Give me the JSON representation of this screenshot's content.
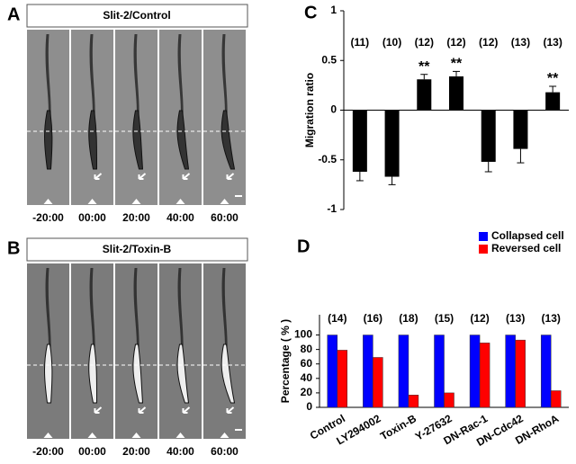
{
  "panels": [
    {
      "label": "A",
      "title": "Slit-2/Control",
      "times": [
        "-20:00",
        "00:00",
        "20:00",
        "40:00",
        "60:00"
      ]
    },
    {
      "label": "B",
      "title": "Slit-2/Toxin-B",
      "times": [
        "-20:00",
        "00:00",
        "20:00",
        "40:00",
        "60:00"
      ]
    }
  ],
  "chart_data": [
    {
      "type": "bar",
      "panel_label": "C",
      "ylabel": "Migration ratio",
      "categories": [
        null,
        null,
        null,
        null,
        null,
        null,
        null
      ],
      "values": [
        -0.62,
        -0.67,
        0.31,
        0.34,
        -0.52,
        -0.39,
        0.18
      ],
      "errors": [
        0.09,
        0.08,
        0.05,
        0.05,
        0.1,
        0.14,
        0.06
      ],
      "counts": [
        "(11)",
        "(10)",
        "(12)",
        "(12)",
        "(12)",
        "(13)",
        "(13)"
      ],
      "significance": [
        null,
        null,
        "**",
        "**",
        null,
        null,
        "**"
      ],
      "color": "#000000",
      "ylim": [
        -1,
        1
      ],
      "yticks": [
        -1,
        -0.5,
        0,
        0.5,
        1
      ]
    },
    {
      "type": "grouped-bar",
      "panel_label": "D",
      "ylabel": "Percentage ( % )",
      "categories": [
        "Control",
        "LY294002",
        "Toxin-B",
        "Y-27632",
        "DN-Rac-1",
        "DN-Cdc42",
        "DN-RhoA"
      ],
      "series": [
        {
          "name": "Collapsed cell",
          "color": "#0000ff",
          "values": [
            100,
            100,
            100,
            100,
            100,
            100,
            100
          ]
        },
        {
          "name": "Reversed cell",
          "color": "#ff0000",
          "values": [
            79,
            69,
            17,
            20,
            89,
            93,
            23
          ]
        }
      ],
      "counts": [
        "(14)",
        "(16)",
        "(18)",
        "(15)",
        "(12)",
        "(13)",
        "(13)"
      ],
      "legend": "top-right",
      "ylim": [
        0,
        128
      ],
      "yticks": [
        0,
        20,
        40,
        60,
        80,
        100
      ]
    }
  ]
}
